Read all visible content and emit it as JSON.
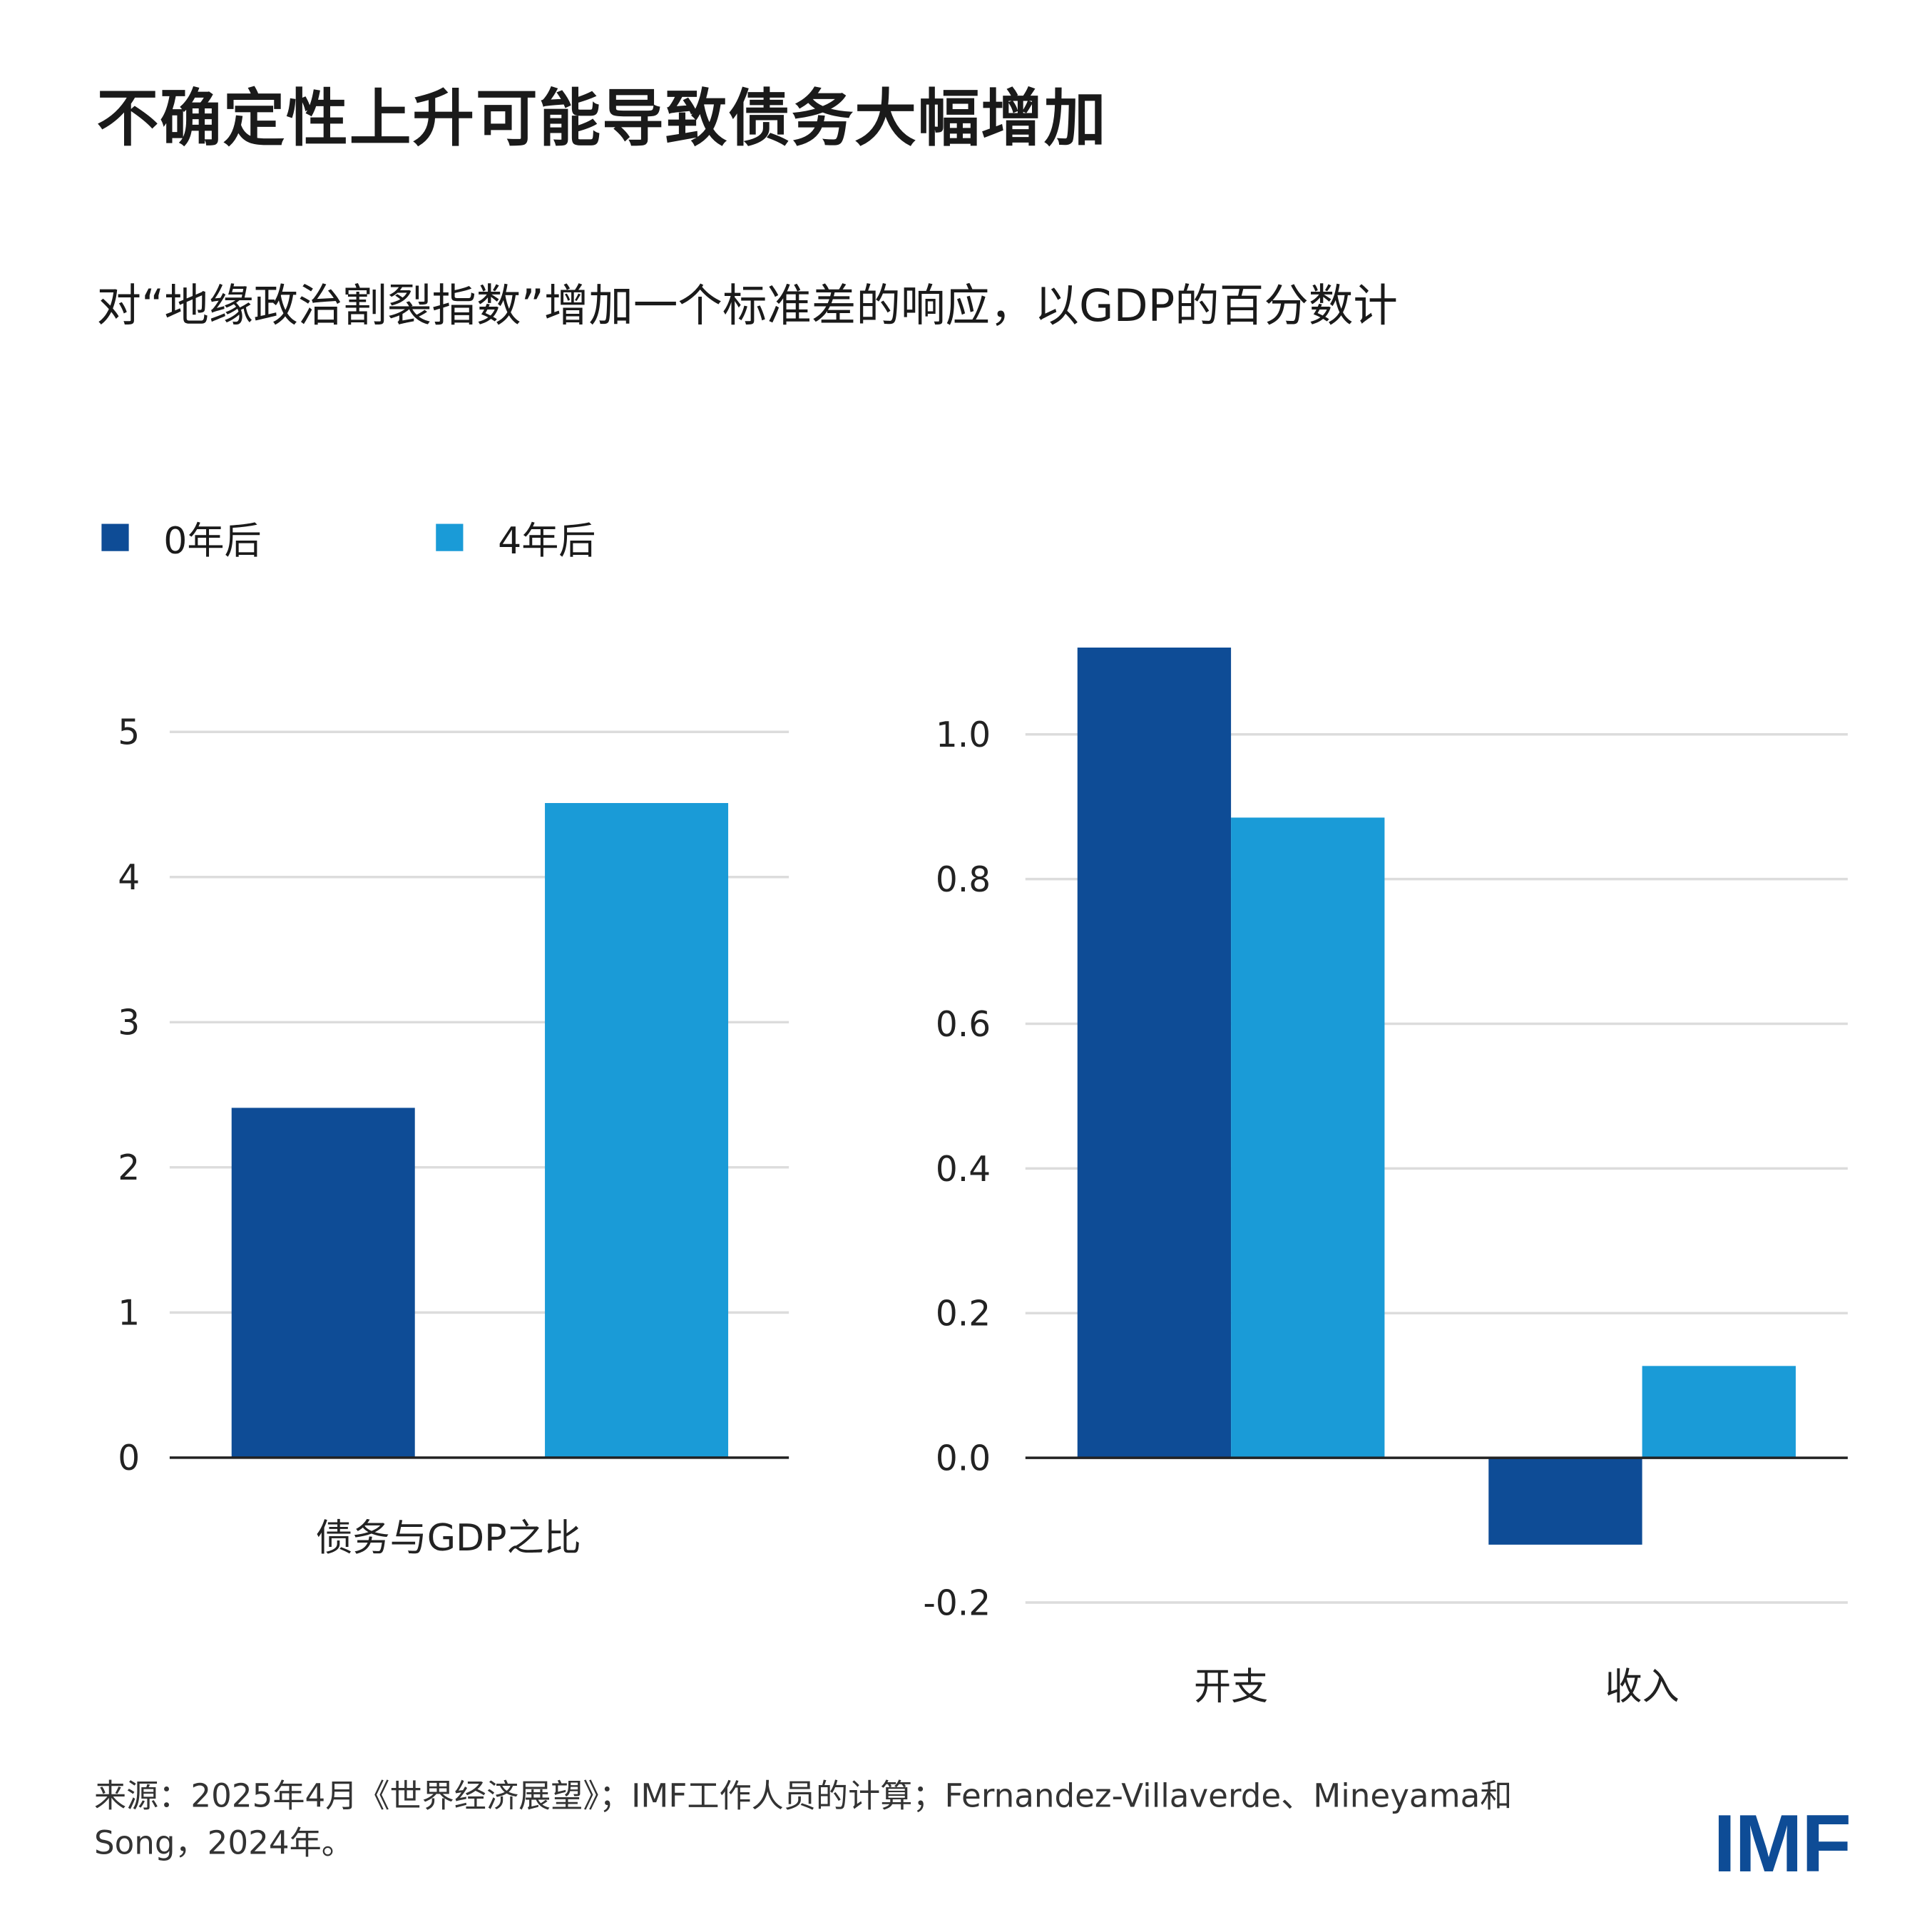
{
  "title": "不确定性上升可能导致债务大幅增加",
  "subtitle": "对“地缘政治割裂指数”增加一个标准差的响应，以GDP的百分数计",
  "legend": [
    {
      "label": "0年后",
      "color": "#0e4c96"
    },
    {
      "label": "4年后",
      "color": "#1a9bd7"
    }
  ],
  "chart_data": [
    {
      "type": "bar",
      "categories": [
        "债务与GDP之比"
      ],
      "series": [
        {
          "name": "0年后",
          "values": [
            2.41
          ]
        },
        {
          "name": "4年后",
          "values": [
            4.51
          ]
        }
      ],
      "ylim": [
        0,
        5
      ],
      "yticks": [
        "0",
        "1",
        "2",
        "3",
        "4",
        "5"
      ],
      "grid": true,
      "legend": "top-left"
    },
    {
      "type": "bar",
      "categories": [
        "开支",
        "收入"
      ],
      "series": [
        {
          "name": "0年后",
          "values": [
            1.12,
            -0.12
          ]
        },
        {
          "name": "4年后",
          "values": [
            0.885,
            0.127
          ]
        }
      ],
      "ylim": [
        -0.2,
        1.0
      ],
      "yticks": [
        "-0.2",
        "0.0",
        "0.2",
        "0.4",
        "0.6",
        "0.8",
        "1.0"
      ],
      "grid": true
    }
  ],
  "source": "来源：2025年4月《世界经济展望》；IMF工作人员的计算；Fernandez-Villaverde、Mineyama和Song，2024年。",
  "logo": "IMF"
}
